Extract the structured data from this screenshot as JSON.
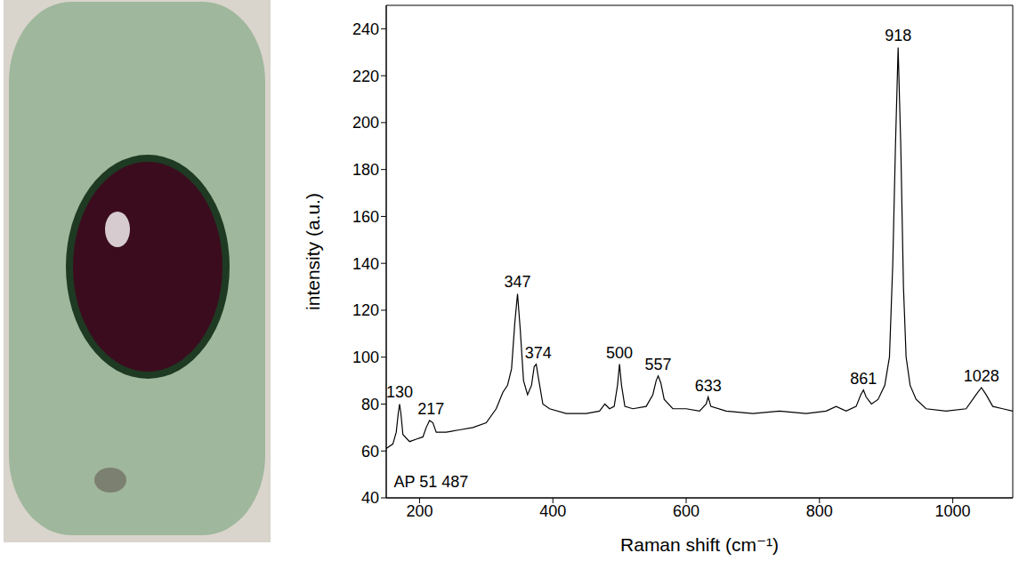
{
  "chart_data": {
    "type": "line",
    "x_label": "Raman shift (cm⁻¹)",
    "y_label": "intensity (a.u.)",
    "xlim": [
      150,
      1090
    ],
    "xticks": [
      200,
      400,
      600,
      800,
      1000
    ],
    "ylim": [
      40,
      250
    ],
    "yticks": [
      40,
      60,
      80,
      100,
      120,
      140,
      160,
      180,
      200,
      220,
      240
    ],
    "grid": false,
    "series": [
      {
        "name": "AP 51 487",
        "color": "#000000",
        "x": [
          150,
          160,
          165,
          168,
          170,
          172,
          175,
          185,
          195,
          205,
          210,
          215,
          220,
          225,
          240,
          260,
          280,
          300,
          315,
          325,
          332,
          338,
          343,
          347,
          351,
          356,
          362,
          368,
          372,
          375,
          379,
          385,
          395,
          420,
          450,
          470,
          478,
          485,
          492,
          497,
          500,
          503,
          508,
          520,
          540,
          550,
          555,
          558,
          562,
          567,
          580,
          600,
          620,
          630,
          633,
          637,
          660,
          700,
          740,
          780,
          810,
          825,
          840,
          855,
          862,
          866,
          870,
          878,
          888,
          898,
          905,
          910,
          914,
          918,
          922,
          926,
          930,
          936,
          945,
          960,
          990,
          1020,
          1035,
          1043,
          1050,
          1060,
          1075,
          1090
        ],
        "values": [
          61,
          63,
          68,
          76,
          80,
          76,
          67,
          64,
          65,
          66,
          70,
          73,
          72,
          68,
          68,
          69,
          70,
          72,
          78,
          85,
          88,
          95,
          115,
          127,
          112,
          90,
          84,
          88,
          96,
          97,
          90,
          80,
          78,
          76,
          76,
          77,
          80,
          78,
          79,
          88,
          97,
          88,
          79,
          78,
          79,
          84,
          90,
          92,
          89,
          82,
          78,
          78,
          77,
          80,
          83,
          79,
          77,
          76,
          77,
          76,
          77,
          79,
          77,
          79,
          84,
          86,
          83,
          80,
          82,
          88,
          100,
          140,
          190,
          232,
          190,
          130,
          100,
          88,
          82,
          78,
          77,
          78,
          84,
          87,
          84,
          79,
          78,
          77
        ]
      }
    ],
    "annotations": [
      {
        "text": "130",
        "x": 170,
        "y": 80
      },
      {
        "text": "217",
        "x": 217,
        "y": 73
      },
      {
        "text": "347",
        "x": 347,
        "y": 127
      },
      {
        "text": "374",
        "x": 378,
        "y": 97
      },
      {
        "text": "500",
        "x": 500,
        "y": 97
      },
      {
        "text": "557",
        "x": 558,
        "y": 92
      },
      {
        "text": "633",
        "x": 633,
        "y": 83
      },
      {
        "text": "861",
        "x": 866,
        "y": 86
      },
      {
        "text": "918",
        "x": 918,
        "y": 232
      },
      {
        "text": "1028",
        "x": 1043,
        "y": 87
      },
      {
        "text": "AP 51 487",
        "x": 152,
        "y": 47
      }
    ]
  }
}
